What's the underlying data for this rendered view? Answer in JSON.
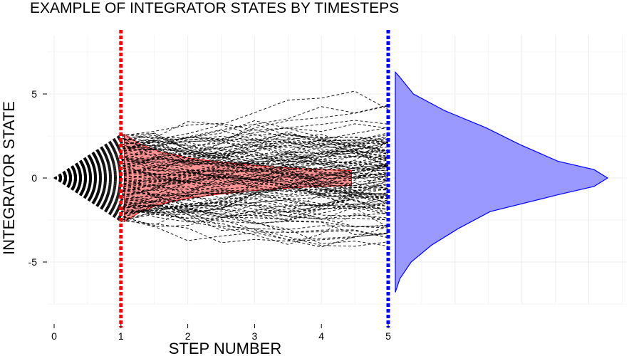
{
  "chart_data": {
    "type": "line",
    "title": "EXAMPLE OF INTEGRATOR STATES BY TIMESTEPS",
    "xlabel": "STEP NUMBER",
    "ylabel": "INTEGRATOR STATE",
    "xlim": [
      0,
      5
    ],
    "ylim": [
      -7.5,
      8.5
    ],
    "xticks": [
      0,
      1,
      2,
      3,
      4,
      5
    ],
    "yticks": [
      -5,
      0,
      5
    ],
    "ytick_labels": [
      "-5",
      "0",
      "5"
    ],
    "grid": true,
    "series_count": 120,
    "colors": {
      "paths": "#000000",
      "marker_step1": "#ff0000",
      "marker_step5": "#0000ff",
      "band_fill": "#ff0000",
      "density_fill": "#9999ff",
      "density_stroke": "#0000ff",
      "grid": "#f0f0f0"
    },
    "vertical_markers": [
      {
        "x": 1,
        "color": "#ff0000"
      },
      {
        "x": 5,
        "color": "#0000ff"
      }
    ],
    "ribbon_step1": {
      "x": [
        1.05,
        1.3,
        1.6,
        2.0,
        2.5,
        3.0,
        3.5,
        4.0,
        4.45
      ],
      "upper": [
        2.6,
        2.0,
        1.55,
        1.2,
        0.95,
        0.75,
        0.6,
        0.5,
        0.45
      ],
      "lower": [
        -2.6,
        -2.0,
        -1.55,
        -1.2,
        -0.95,
        -0.75,
        -0.6,
        -0.5,
        -0.45
      ]
    },
    "density_step5": {
      "y": [
        -6.8,
        -6.0,
        -5.0,
        -4.0,
        -3.0,
        -2.0,
        -1.0,
        -0.5,
        0.0,
        0.5,
        1.0,
        2.0,
        3.0,
        4.0,
        5.0,
        6.0,
        6.3
      ],
      "density": [
        0.0,
        0.02,
        0.07,
        0.16,
        0.28,
        0.42,
        0.72,
        0.88,
        0.94,
        0.88,
        0.72,
        0.55,
        0.4,
        0.22,
        0.08,
        0.02,
        0.0
      ]
    }
  }
}
